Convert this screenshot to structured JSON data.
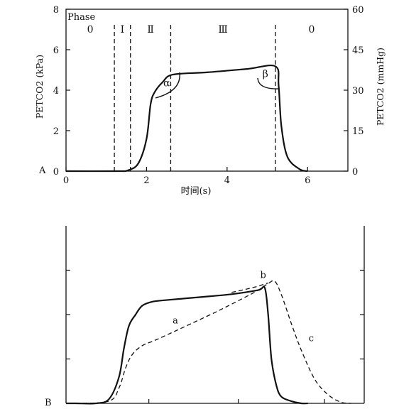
{
  "chart_data": [
    {
      "panel": "A",
      "type": "line",
      "ylabel_left": "PETCO2 (kPa)",
      "ylabel_right": "PETCO2 (mmHg)",
      "xlabel": "时间(s)",
      "xlim": [
        0,
        7
      ],
      "ylim_left": [
        0,
        8
      ],
      "ylim_right": [
        0,
        60
      ],
      "x_ticks": [
        0,
        2,
        4,
        6
      ],
      "y_ticks_left": [
        0,
        2,
        4,
        6,
        8
      ],
      "y_ticks_right": [
        0,
        15,
        30,
        45,
        60
      ],
      "phase_header": "Phase",
      "phases": [
        {
          "label": "0",
          "x": 0.6
        },
        {
          "label": "Ⅰ",
          "x": 1.4
        },
        {
          "label": "Ⅱ",
          "x": 2.1
        },
        {
          "label": "Ⅲ",
          "x": 3.9
        },
        {
          "label": "0",
          "x": 6.1
        }
      ],
      "phase_boundaries": [
        1.2,
        1.6,
        2.6,
        5.2
      ],
      "series": [
        {
          "style": "solid",
          "x": [
            0,
            1.25,
            1.55,
            1.8,
            2.0,
            2.1,
            2.2,
            2.4,
            2.65,
            3.5,
            4.5,
            5.2,
            5.28,
            5.35,
            5.5,
            5.8,
            6.0
          ],
          "y": [
            0,
            0,
            0.05,
            0.4,
            1.6,
            3.3,
            3.9,
            4.4,
            4.77,
            4.88,
            5.05,
            5.18,
            4.2,
            2.2,
            0.7,
            0.1,
            0
          ]
        }
      ],
      "angle_labels": [
        {
          "label": "α",
          "x": 2.5,
          "y": 4.2
        },
        {
          "label": "β",
          "x": 4.95,
          "y": 4.65
        }
      ]
    },
    {
      "panel": "B",
      "type": "line",
      "series": [
        {
          "style": "solid",
          "x": [
            0,
            0.3,
            0.9,
            1.3,
            1.6,
            1.75,
            1.9,
            2.1,
            2.3,
            2.6,
            3.0,
            4.0,
            5.0,
            5.8,
            6.0,
            6.1,
            6.2,
            6.35,
            6.5,
            6.8,
            7.1,
            7.3
          ],
          "y": [
            0,
            0,
            0,
            0.2,
            1.2,
            2.5,
            3.5,
            4.0,
            4.4,
            4.58,
            4.65,
            4.78,
            4.92,
            5.1,
            5.2,
            4.0,
            2.0,
            0.8,
            0.3,
            0.1,
            0,
            0
          ]
        },
        {
          "style": "dashed",
          "x": [
            0.3,
            1.3,
            1.6,
            1.8,
            2.0,
            2.3,
            2.7,
            3.5,
            4.5,
            5.3,
            5.8,
            6.1,
            6.3,
            6.5,
            6.8,
            7.1,
            7.5,
            7.9,
            8.3,
            8.6
          ],
          "y": [
            0,
            0.1,
            0.7,
            1.6,
            2.2,
            2.6,
            2.85,
            3.4,
            4.1,
            4.7,
            5.1,
            5.4,
            5.5,
            4.9,
            3.6,
            2.4,
            1.1,
            0.4,
            0.05,
            0
          ]
        }
      ],
      "dashed_overlay": {
        "x": [
          5.0,
          5.45,
          5.8,
          6.0,
          6.1
        ],
        "y": [
          5.0,
          5.15,
          5.28,
          5.38,
          5.42
        ]
      },
      "curve_labels": [
        {
          "label": "a",
          "x": 3.3,
          "y": 3.6
        },
        {
          "label": "b",
          "x": 5.95,
          "y": 5.65
        },
        {
          "label": "c",
          "x": 7.4,
          "y": 2.8
        }
      ]
    }
  ],
  "panel_labels": {
    "a": "A",
    "b": "B"
  }
}
